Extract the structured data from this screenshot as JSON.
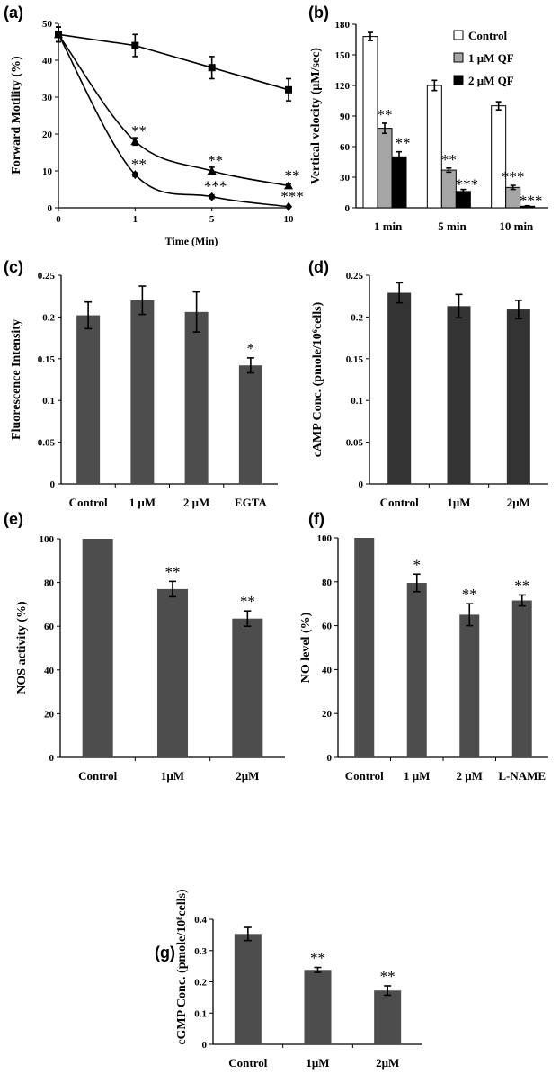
{
  "chart_data": [
    {
      "panel": "(a)",
      "type": "line",
      "x": [
        0,
        1,
        5,
        10
      ],
      "xlabel": "Time (Min)",
      "ylabel": "Forward Motility (%)",
      "ylim": [
        0,
        50
      ],
      "yticks": [
        "0",
        "10",
        "20",
        "30",
        "40",
        "50"
      ],
      "xticks": [
        "0",
        "1",
        "5",
        "10"
      ],
      "series": [
        {
          "values": [
            47,
            44,
            38,
            32
          ],
          "errors": [
            2,
            3,
            3,
            3
          ],
          "marker": "square",
          "stars": [
            "",
            "",
            "",
            ""
          ]
        },
        {
          "values": [
            47,
            18,
            10,
            6
          ],
          "errors": [
            2,
            1,
            1,
            0.5
          ],
          "marker": "triangle",
          "stars": [
            "",
            "**",
            "**",
            "**"
          ]
        },
        {
          "values": [
            47,
            9,
            3,
            0.3
          ],
          "errors": [
            2,
            0.5,
            0.5,
            0.2
          ],
          "marker": "diamond",
          "stars": [
            "",
            "**",
            "***",
            "***"
          ]
        }
      ]
    },
    {
      "panel": "(b)",
      "type": "bar",
      "categories": [
        "1 min",
        "5 min",
        "10 min"
      ],
      "ylabel": "Vertical velocity (μM/sec)",
      "ylim": [
        0,
        180
      ],
      "yticks": [
        "0",
        "30",
        "60",
        "90",
        "120",
        "150",
        "180"
      ],
      "legend_position": "top-right",
      "series": [
        {
          "name": "Control",
          "color": "#ffffff",
          "values": [
            168,
            120,
            100
          ],
          "errors": [
            4,
            5,
            4
          ],
          "stars": [
            "",
            "",
            ""
          ]
        },
        {
          "name": "1 μM QF",
          "color": "#a6a6a6",
          "values": [
            78,
            37,
            20
          ],
          "errors": [
            5,
            2,
            2
          ],
          "stars": [
            "**",
            "**",
            "***"
          ]
        },
        {
          "name": "2 μM QF",
          "color": "#000000",
          "values": [
            50,
            16,
            1.5
          ],
          "errors": [
            5,
            2,
            0.5
          ],
          "stars": [
            "**",
            "***",
            "***"
          ]
        }
      ]
    },
    {
      "panel": "(c)",
      "type": "bar",
      "categories": [
        "Control",
        "1 μM",
        "2 μM",
        "EGTA"
      ],
      "values": [
        0.202,
        0.22,
        0.206,
        0.142
      ],
      "errors": [
        0.016,
        0.017,
        0.024,
        0.009
      ],
      "stars": [
        "",
        "",
        "",
        "*"
      ],
      "ylabel": "Fluorescence Intensity",
      "ylim": [
        0,
        0.25
      ],
      "yticks": [
        "0",
        "0.05",
        "0.1",
        "0.15",
        "0.2",
        "0.25"
      ]
    },
    {
      "panel": "(d)",
      "type": "bar",
      "categories": [
        "Control",
        "1μM",
        "2μM"
      ],
      "values": [
        0.229,
        0.213,
        0.209
      ],
      "errors": [
        0.012,
        0.014,
        0.011
      ],
      "stars": [
        "",
        "",
        ""
      ],
      "ylabel": "cAMP Conc. (pmole/10⁶cells)",
      "ylim": [
        0,
        0.25
      ],
      "yticks": [
        "0",
        "0.05",
        "0.1",
        "0.15",
        "0.2",
        "0.25"
      ]
    },
    {
      "panel": "(e)",
      "type": "bar",
      "categories": [
        "Control",
        "1μM",
        "2μM"
      ],
      "values": [
        100,
        77,
        63.5
      ],
      "errors": [
        0,
        3.5,
        3.5
      ],
      "stars": [
        "",
        "**",
        "**"
      ],
      "ylabel": "NOS activity (%)",
      "ylim": [
        0,
        100
      ],
      "yticks": [
        "0",
        "20",
        "40",
        "60",
        "80",
        "100"
      ]
    },
    {
      "panel": "(f)",
      "type": "bar",
      "categories": [
        "Control",
        "1 μM",
        "2 μM",
        "L-NAME"
      ],
      "values": [
        100,
        79.5,
        65,
        71.5
      ],
      "errors": [
        0,
        4,
        5,
        2.5
      ],
      "stars": [
        "",
        "*",
        "**",
        "**"
      ],
      "ylabel": "NO level (%)",
      "ylim": [
        0,
        100
      ],
      "yticks": [
        "0",
        "20",
        "40",
        "60",
        "80",
        "100"
      ]
    },
    {
      "panel": "(g)",
      "type": "bar",
      "categories": [
        "Control",
        "1μM",
        "2μM"
      ],
      "values": [
        0.353,
        0.238,
        0.172
      ],
      "errors": [
        0.021,
        0.008,
        0.015
      ],
      "stars": [
        "",
        "**",
        "**"
      ],
      "ylabel": "cGMP Conc. (pmole/10⁸cells)",
      "ylim": [
        0,
        0.4
      ],
      "yticks": [
        "0",
        "0.1",
        "0.2",
        "0.3",
        "0.4"
      ]
    }
  ]
}
